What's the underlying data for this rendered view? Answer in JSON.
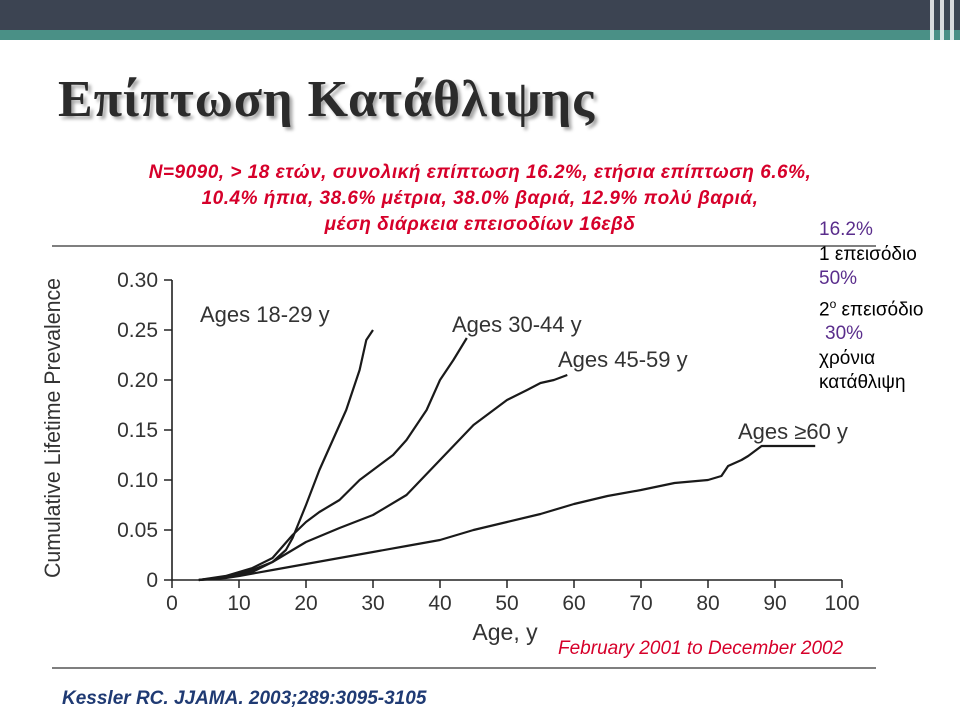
{
  "slide": {
    "title": "Επίπτωση Κατάθλιψης",
    "stats_lines": [
      "N=9090, > 18 ετών, συνολική επίπτωση 16.2%, ετήσια επίπτωση 6.6%,",
      "10.4% ήπια, 38.6% μέτρια, 38.0% βαριά, 12.9% πολύ βαριά,",
      "μέση διάρκεια επεισοδίων 16εβδ"
    ],
    "side_notes": {
      "pct1": "16.2%",
      "label1": "1 επεισόδιο",
      "pct2": "50%",
      "label2_prefix": "2",
      "label2_sup": "ο",
      "label2_suffix": " επεισόδιο",
      "pct3": "30%",
      "label3a": "χρόνια",
      "label3b": "κατάθλιψη"
    },
    "period": "February 2001 to December 2002",
    "citation": "Kessler RC. JJAMA. 2003;289:3095-3105"
  },
  "colors": {
    "stats_text": "#d6002a",
    "percent_text": "#5a2d8c",
    "citation_text": "#1f3a73",
    "header_dark": "#3c4452",
    "header_accent": "#3f8f84"
  },
  "chart_data": {
    "type": "line",
    "title": "",
    "xlabel": "Age, y",
    "ylabel": "Cumulative Lifetime Prevalence",
    "xlim": [
      0,
      100
    ],
    "ylim": [
      0,
      0.3
    ],
    "xticks": [
      "0",
      "10",
      "20",
      "30",
      "40",
      "50",
      "60",
      "70",
      "80",
      "90",
      "100"
    ],
    "yticks": [
      "0",
      "0.05",
      "0.10",
      "0.15",
      "0.20",
      "0.25",
      "0.30"
    ],
    "grid": false,
    "series": [
      {
        "name": "Ages 18-29 y",
        "x": [
          4,
          8,
          12,
          15,
          17,
          18,
          20,
          22,
          24,
          26,
          28,
          29,
          30
        ],
        "y": [
          0,
          0.003,
          0.01,
          0.018,
          0.03,
          0.042,
          0.075,
          0.11,
          0.14,
          0.17,
          0.21,
          0.24,
          0.25
        ]
      },
      {
        "name": "Ages 30-44 y",
        "x": [
          4,
          8,
          12,
          15,
          18,
          20,
          22,
          25,
          28,
          30,
          33,
          35,
          38,
          40,
          42,
          44
        ],
        "y": [
          0,
          0.004,
          0.012,
          0.022,
          0.045,
          0.058,
          0.068,
          0.08,
          0.1,
          0.11,
          0.125,
          0.14,
          0.17,
          0.2,
          0.22,
          0.242
        ]
      },
      {
        "name": "Ages 45-59 y",
        "x": [
          4,
          8,
          12,
          15,
          18,
          20,
          25,
          30,
          35,
          40,
          45,
          50,
          53,
          55,
          57,
          59
        ],
        "y": [
          0,
          0.003,
          0.008,
          0.018,
          0.03,
          0.038,
          0.052,
          0.065,
          0.085,
          0.12,
          0.155,
          0.18,
          0.19,
          0.197,
          0.2,
          0.205
        ]
      },
      {
        "name": "Ages ≥60 y",
        "x": [
          4,
          8,
          10,
          15,
          20,
          25,
          30,
          35,
          40,
          45,
          50,
          55,
          60,
          65,
          70,
          75,
          80,
          82,
          83,
          85,
          86,
          88,
          90,
          92,
          96
        ],
        "y": [
          0,
          0.002,
          0.004,
          0.01,
          0.016,
          0.022,
          0.028,
          0.034,
          0.04,
          0.05,
          0.058,
          0.066,
          0.076,
          0.084,
          0.09,
          0.097,
          0.1,
          0.104,
          0.114,
          0.12,
          0.124,
          0.134,
          0.134,
          0.134,
          0.134
        ]
      }
    ]
  }
}
